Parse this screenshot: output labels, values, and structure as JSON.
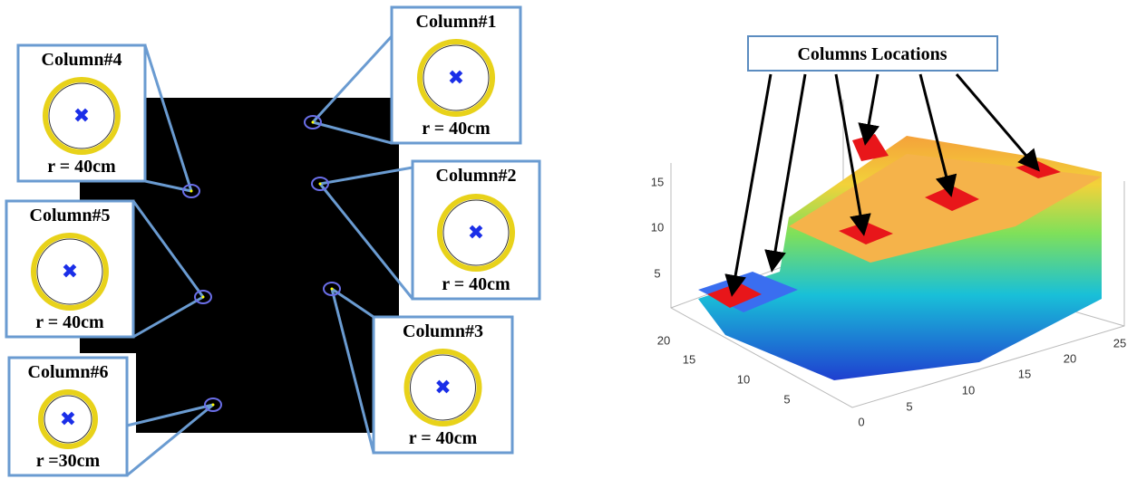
{
  "left_panel": {
    "callouts": [
      {
        "label": "Column#1",
        "radius": "r = 40cm"
      },
      {
        "label": "Column#2",
        "radius": "r = 40cm"
      },
      {
        "label": "Column#3",
        "radius": "r = 40cm"
      },
      {
        "label": "Column#4",
        "radius": "r = 40cm"
      },
      {
        "label": "Column#5",
        "radius": "r = 40cm"
      },
      {
        "label": "Column#6",
        "radius": "r =30cm"
      }
    ]
  },
  "right_panel": {
    "title": "Columns Locations",
    "z_ticks": [
      5,
      10,
      15
    ],
    "y_ticks": [
      0,
      5,
      10,
      15,
      20
    ],
    "x_ticks": [
      5,
      10,
      15,
      20,
      25
    ]
  }
}
